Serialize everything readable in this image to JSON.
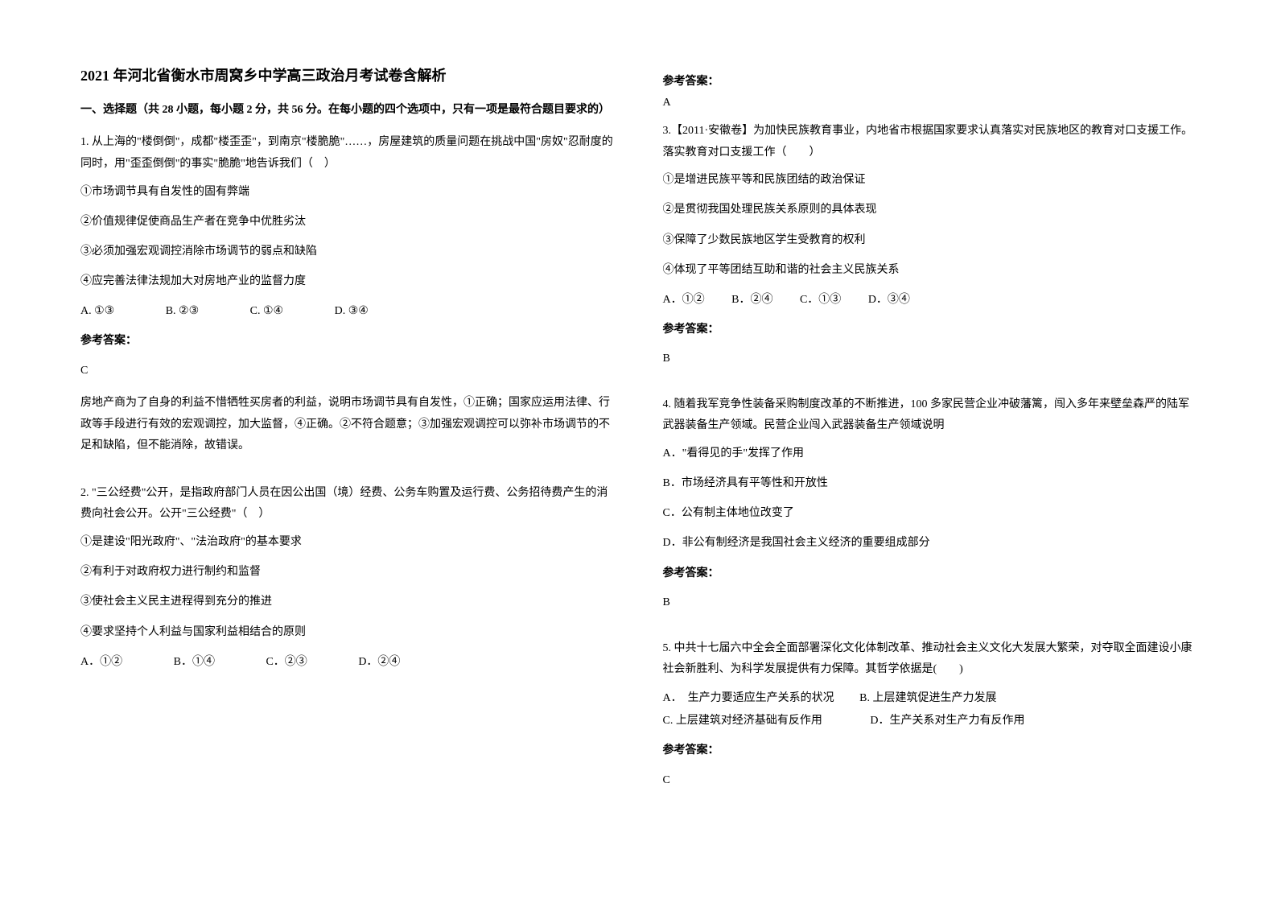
{
  "title": "2021 年河北省衡水市周窝乡中学高三政治月考试卷含解析",
  "section_header": "一、选择题（共 28 小题，每小题 2 分，共 56 分。在每小题的四个选项中，只有一项是最符合题目要求的）",
  "q1": {
    "text": "1. 从上海的\"楼倒倒\"，成都\"楼歪歪\"，到南京\"楼脆脆\"……，房屋建筑的质量问题在挑战中国\"房奴\"忍耐度的同时，用\"歪歪倒倒\"的事实\"脆脆\"地告诉我们（　）",
    "s1": "①市场调节具有自发性的固有弊端",
    "s2": "②价值规律促使商品生产者在竞争中优胜劣汰",
    "s3": "③必须加强宏观调控消除市场调节的弱点和缺陷",
    "s4": "④应完善法律法规加大对房地产业的监督力度",
    "a": "A. ①③",
    "b": "B. ②③",
    "c": "C. ①④",
    "d": "D. ③④",
    "answer_label": "参考答案：",
    "answer": "C",
    "explanation": "房地产商为了自身的利益不惜牺牲买房者的利益，说明市场调节具有自发性，①正确；国家应运用法律、行政等手段进行有效的宏观调控，加大监督，④正确。②不符合题意；③加强宏观调控可以弥补市场调节的不足和缺陷，但不能消除，故错误。"
  },
  "q2": {
    "text": "2. \"三公经费\"公开，是指政府部门人员在因公出国（境）经费、公务车购置及运行费、公务招待费产生的消费向社会公开。公开\"三公经费\"（　）",
    "s1": "①是建设\"阳光政府\"、\"法治政府\"的基本要求",
    "s2": "②有利于对政府权力进行制约和监督",
    "s3": "③使社会主义民主进程得到充分的推进",
    "s4": "④要求坚持个人利益与国家利益相结合的原则",
    "a": "A．①②",
    "b": "B．①④",
    "c": "C．②③",
    "d": "D．②④",
    "answer_label": "参考答案：",
    "answer": "A"
  },
  "q3": {
    "text": "3.【2011·安徽卷】为加快民族教育事业，内地省市根据国家要求认真落实对民族地区的教育对口支援工作。落实教育对口支援工作（　　）",
    "s1": "①是增进民族平等和民族团结的政治保证",
    "s2": "②是贯彻我国处理民族关系原则的具体表现",
    "s3": "③保障了少数民族地区学生受教育的权利",
    "s4": "④体现了平等团结互助和谐的社会主义民族关系",
    "a": "A．①②",
    "b": "B．②④",
    "c": "C．①③",
    "d": "D．③④",
    "answer_label": "参考答案：",
    "answer": "B"
  },
  "q4": {
    "text": "4. 随着我军竞争性装备采购制度改革的不断推进，100 多家民营企业冲破藩篱，闯入多年来壁垒森严的陆军武器装备生产领域。民营企业闯入武器装备生产领域说明",
    "a": "A．\"看得见的手\"发挥了作用",
    "b": "B．市场经济具有平等性和开放性",
    "c": "C．公有制主体地位改变了",
    "d": "D．非公有制经济是我国社会主义经济的重要组成部分",
    "answer_label": "参考答案：",
    "answer": "B"
  },
  "q5": {
    "text": "5. 中共十七届六中全会全面部署深化文化体制改革、推动社会主义文化大发展大繁荣，对夺取全面建设小康社会新胜利、为科学发展提供有力保障。其哲学依据是(　　)",
    "a": "A．　生产力要适应生产关系的状况",
    "b": "B. 上层建筑促进生产力发展",
    "c": "C. 上层建筑对经济基础有反作用",
    "d": "D．生产关系对生产力有反作用",
    "answer_label": "参考答案：",
    "answer": "C"
  }
}
